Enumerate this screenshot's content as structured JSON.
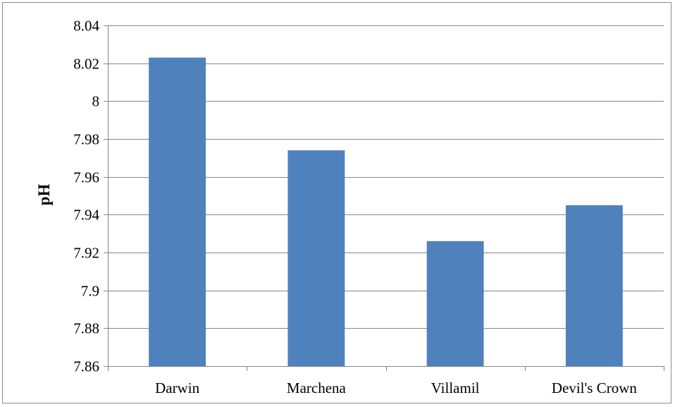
{
  "chart_data": {
    "type": "bar",
    "title": "",
    "xlabel": "",
    "ylabel": "pH",
    "categories": [
      "Darwin",
      "Marchena",
      "Villamil",
      "Devil's Crown"
    ],
    "values": [
      8.023,
      7.974,
      7.926,
      7.945
    ],
    "ylim": [
      7.86,
      8.04
    ],
    "yticks": [
      "7.86",
      "7.88",
      "7.9",
      "7.92",
      "7.94",
      "7.96",
      "7.98",
      "8",
      "8.02",
      "8.04"
    ],
    "grid": true,
    "legend": "none",
    "colors": {
      "bar": "#4f81bd",
      "grid": "#868686",
      "axis": "#868686"
    }
  }
}
